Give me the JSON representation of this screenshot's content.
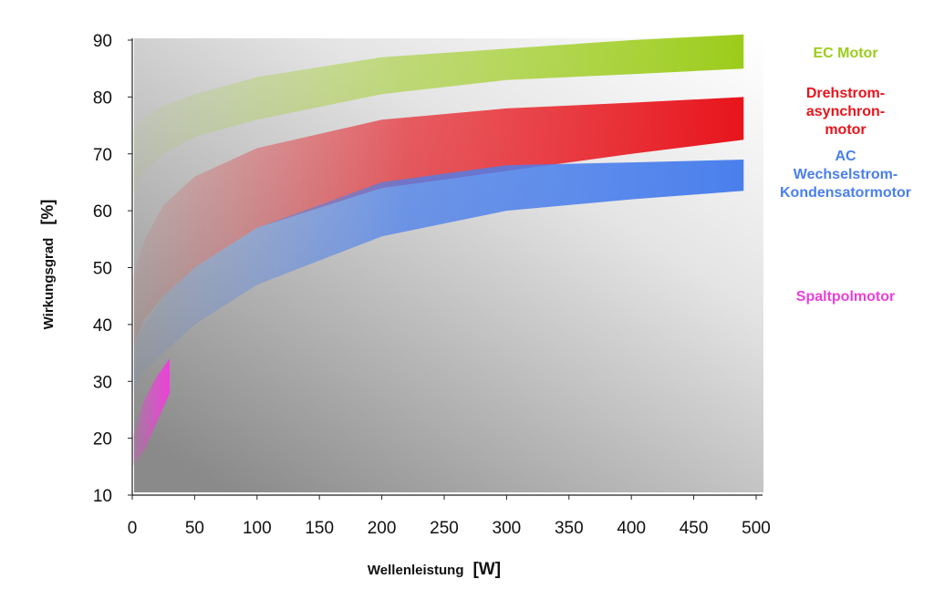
{
  "chart_data": {
    "type": "area",
    "xlabel": "Wellenleistung",
    "xunit": "[W]",
    "ylabel": "Wirkungsgrad",
    "yunit": "[%]",
    "xlim": [
      0,
      500
    ],
    "ylim": [
      10,
      90
    ],
    "x_ticks": [
      "0",
      "50",
      "100",
      "150",
      "200",
      "250",
      "300",
      "350",
      "400",
      "450",
      "500"
    ],
    "y_ticks": [
      "10",
      "20",
      "30",
      "40",
      "50",
      "60",
      "70",
      "80",
      "90"
    ],
    "grid": false,
    "legend_position": "right",
    "series": [
      {
        "name": "EC Motor",
        "color": "#9ccc1a",
        "x": [
          0,
          10,
          25,
          50,
          100,
          200,
          300,
          400,
          490
        ],
        "upper": [
          74,
          76.5,
          78.5,
          80.5,
          83.5,
          87,
          88.5,
          90,
          91
        ],
        "lower": [
          63,
          67,
          70,
          73,
          76,
          80.5,
          83,
          84,
          85
        ]
      },
      {
        "name": "Drehstrom-asynchron-motor",
        "label_lines": [
          "Drehstrom-",
          "asynchron-",
          "motor"
        ],
        "color": "#e8141c",
        "x": [
          0,
          10,
          25,
          50,
          100,
          200,
          300,
          400,
          490
        ],
        "upper": [
          48,
          55,
          61,
          66,
          71,
          76,
          78,
          79,
          80
        ],
        "lower": [
          36,
          41,
          45,
          50,
          57,
          64,
          67,
          70,
          72.5
        ]
      },
      {
        "name": "AC Wechselstrom-Kondensatormotor",
        "label_lines": [
          "AC",
          "Wechselstrom-",
          "Kondensatormotor"
        ],
        "color": "#4a7fec",
        "x": [
          0,
          10,
          25,
          50,
          100,
          200,
          300,
          400,
          490
        ],
        "upper": [
          36,
          40,
          45,
          50,
          57,
          65,
          68,
          68.5,
          69
        ],
        "lower": [
          28,
          32,
          35,
          40,
          47,
          55.5,
          60,
          62,
          63.5
        ]
      },
      {
        "name": "Spaltpolmotor",
        "color": "#ee3fd8",
        "x": [
          0,
          10,
          20,
          30
        ],
        "upper": [
          20,
          27,
          31,
          34
        ],
        "lower": [
          15,
          18,
          23,
          28
        ]
      }
    ]
  }
}
